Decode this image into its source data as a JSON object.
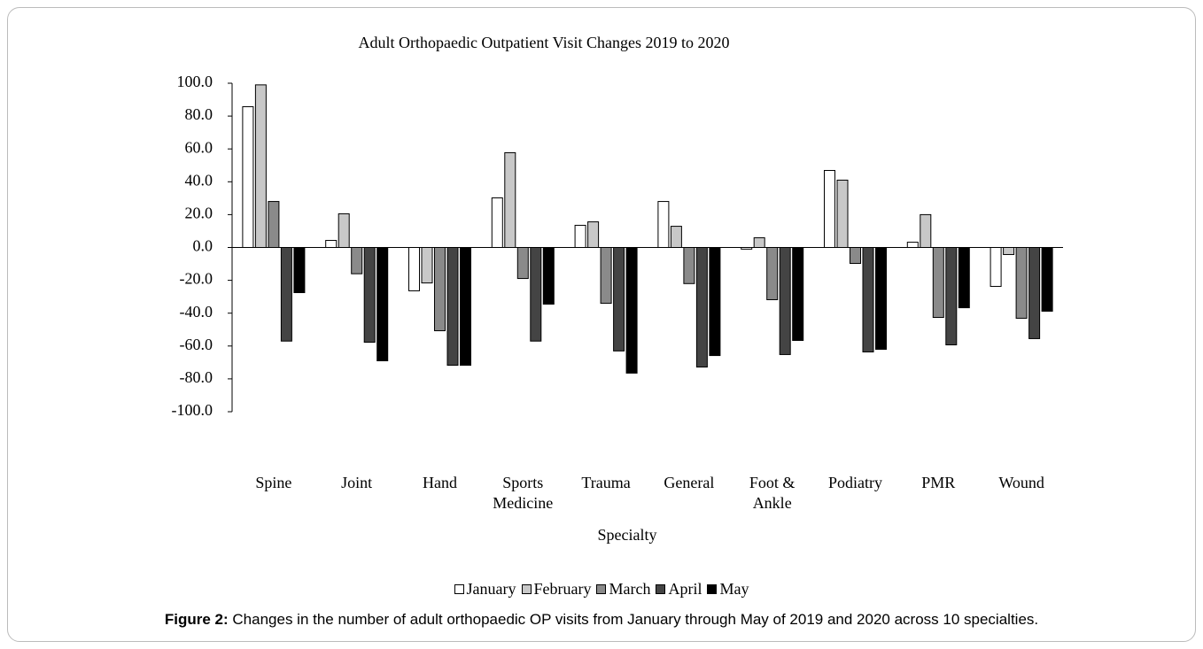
{
  "chart_data": {
    "type": "bar",
    "title": "Adult Orthopaedic Outpatient Visit Changes 2019 to 2020",
    "x_label": "Specialty",
    "categories": [
      "Spine",
      "Joint",
      "Hand",
      "Sports Medicine",
      "Trauma",
      "General",
      "Foot & Ankle",
      "Podiatry",
      "PMR",
      "Wound"
    ],
    "series": [
      {
        "name": "January",
        "color": "#ffffff",
        "values": [
          85.7,
          4.3,
          -26.4,
          30.2,
          13.5,
          28.0,
          -1.0,
          46.9,
          3.2,
          -23.7
        ]
      },
      {
        "name": "February",
        "color": "#c8c8c8",
        "values": [
          99.0,
          20.5,
          -21.6,
          57.7,
          15.6,
          12.9,
          5.9,
          41.0,
          20.0,
          -4.3
        ]
      },
      {
        "name": "March",
        "color": "#8a8a8a",
        "values": [
          28.0,
          -16.0,
          -50.7,
          -18.9,
          -34.0,
          -22.0,
          -31.8,
          -9.7,
          -42.6,
          -43.1
        ]
      },
      {
        "name": "April",
        "color": "#444444",
        "values": [
          -57.0,
          -57.7,
          -71.7,
          -57.0,
          -63.0,
          -72.8,
          -65.2,
          -63.6,
          -59.3,
          -55.5
        ]
      },
      {
        "name": "May",
        "color": "#000000",
        "values": [
          -27.5,
          -69.0,
          -71.7,
          -34.5,
          -76.5,
          -65.8,
          -56.6,
          -62.0,
          -36.7,
          -38.8
        ]
      }
    ],
    "ylim": [
      -100,
      100
    ],
    "yticks": [
      {
        "value": 100,
        "label": "100.0"
      },
      {
        "value": 80,
        "label": "80.0"
      },
      {
        "value": 60,
        "label": "60.0"
      },
      {
        "value": 40,
        "label": "40.0"
      },
      {
        "value": 20,
        "label": "20.0"
      },
      {
        "value": 0,
        "label": "0.0"
      },
      {
        "value": -20,
        "label": "-20.0"
      },
      {
        "value": -40,
        "label": "-40.0"
      },
      {
        "value": -60,
        "label": "-60.0"
      },
      {
        "value": -80,
        "label": "-80.0"
      },
      {
        "value": -100,
        "label": "-100.0"
      }
    ],
    "grid": false,
    "legend": "bottom"
  },
  "caption": {
    "label": "Figure 2:",
    "text": "Changes in the number of adult orthopaedic OP visits from January through May of 2019 and 2020 across 10 specialties."
  }
}
